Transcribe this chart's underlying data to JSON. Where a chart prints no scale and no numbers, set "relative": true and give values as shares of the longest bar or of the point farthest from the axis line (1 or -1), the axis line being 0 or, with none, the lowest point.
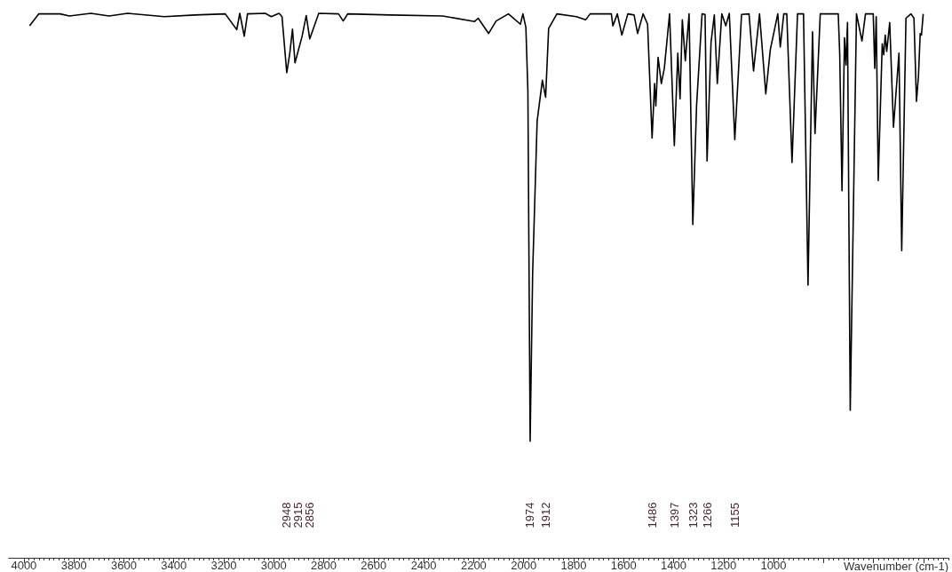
{
  "chart_data": {
    "type": "line",
    "relative": true,
    "color": "#000000",
    "xlabel": "Wavenumber (cm-1)",
    "grid": false,
    "marker": "none",
    "line_style": "solid",
    "xlim": [
      4060,
      300
    ],
    "xticks": [
      4000,
      3800,
      3600,
      3400,
      3200,
      3000,
      2800,
      2600,
      2400,
      2200,
      2000,
      1800,
      1600,
      1400,
      1200,
      1000,
      {
        "value": 800,
        "label": null
      },
      {
        "value": 600,
        "label": null
      },
      {
        "value": 400,
        "label": null
      }
    ],
    "x": [
      3977,
      3940,
      3855,
      3818,
      3732,
      3659,
      3585,
      3438,
      3316,
      3194,
      3148,
      3136,
      3118,
      3105,
      3034,
      3010,
      2979,
      2967,
      2948,
      2936,
      2925,
      2915,
      2887,
      2870,
      2856,
      2820,
      2741,
      2722,
      2704,
      2533,
      2324,
      2196,
      2182,
      2140,
      2110,
      2061,
      2013,
      2003,
      1991,
      1983,
      1974,
      1964,
      1946,
      1925,
      1912,
      1900,
      1867,
      1789,
      1752,
      1734,
      1649,
      1643,
      1625,
      1607,
      1583,
      1558,
      1544,
      1522,
      1504,
      1486,
      1476,
      1471,
      1462,
      1449,
      1437,
      1416,
      1397,
      1383,
      1374,
      1365,
      1353,
      1338,
      1323,
      1308,
      1286,
      1274,
      1266,
      1250,
      1237,
      1225,
      1207,
      1191,
      1177,
      1155,
      1128,
      1098,
      1080,
      1056,
      1031,
      1013,
      983,
      973,
      959,
      947,
      926,
      904,
      880,
      862,
      844,
      834,
      813,
      741,
      735,
      726,
      716,
      710,
      704,
      693,
      668,
      646,
      632,
      601,
      595,
      589,
      581,
      565,
      559,
      553,
      547,
      535,
      520,
      498,
      487,
      470,
      450,
      438,
      428,
      420,
      413,
      408,
      401
    ],
    "values": [
      0.977,
      0.999,
      0.999,
      0.995,
      1,
      0.995,
      1,
      0.994,
      0.997,
      0.999,
      0.97,
      1,
      0.958,
      0.999,
      1,
      0.994,
      1,
      0.994,
      0.891,
      0.926,
      0.971,
      0.909,
      0.957,
      0.996,
      0.953,
      1,
      0.999,
      0.986,
      0.999,
      0.997,
      0.995,
      0.985,
      0.991,
      0.963,
      0.986,
      0.999,
      0.98,
      0.999,
      0.974,
      0.857,
      0.214,
      0.523,
      0.802,
      0.877,
      0.846,
      0.972,
      0.999,
      0.994,
      0.988,
      0.999,
      0.999,
      0.977,
      0.999,
      0.96,
      0.999,
      0.997,
      0.963,
      0.999,
      0.98,
      0.771,
      0.871,
      0.83,
      0.919,
      0.871,
      0.899,
      0.999,
      0.757,
      0.927,
      0.843,
      0.988,
      0.913,
      0.999,
      0.612,
      0.83,
      0.999,
      0.998,
      0.729,
      0.947,
      0.997,
      0.871,
      0.999,
      0.977,
      1,
      0.768,
      0.998,
      0.999,
      0.894,
      0.999,
      0.852,
      0.933,
      0.999,
      0.938,
      0.999,
      0.999,
      0.726,
      0.999,
      0.999,
      0.501,
      0.966,
      0.779,
      0.999,
      0.999,
      0.924,
      0.674,
      0.955,
      0.905,
      0.983,
      0.271,
      0.999,
      0.949,
      0.999,
      0.999,
      0.899,
      0.994,
      0.693,
      0.944,
      0.924,
      0.96,
      0.93,
      0.983,
      0.791,
      0.927,
      0.564,
      0.991,
      0.999,
      0.991,
      0.838,
      0.885,
      0.963,
      0.96,
      0.999
    ],
    "annotations": [
      "2948",
      "2915",
      "2856",
      "1974",
      "1912",
      "1486",
      "1397",
      "1323",
      "1266",
      "1155"
    ]
  }
}
